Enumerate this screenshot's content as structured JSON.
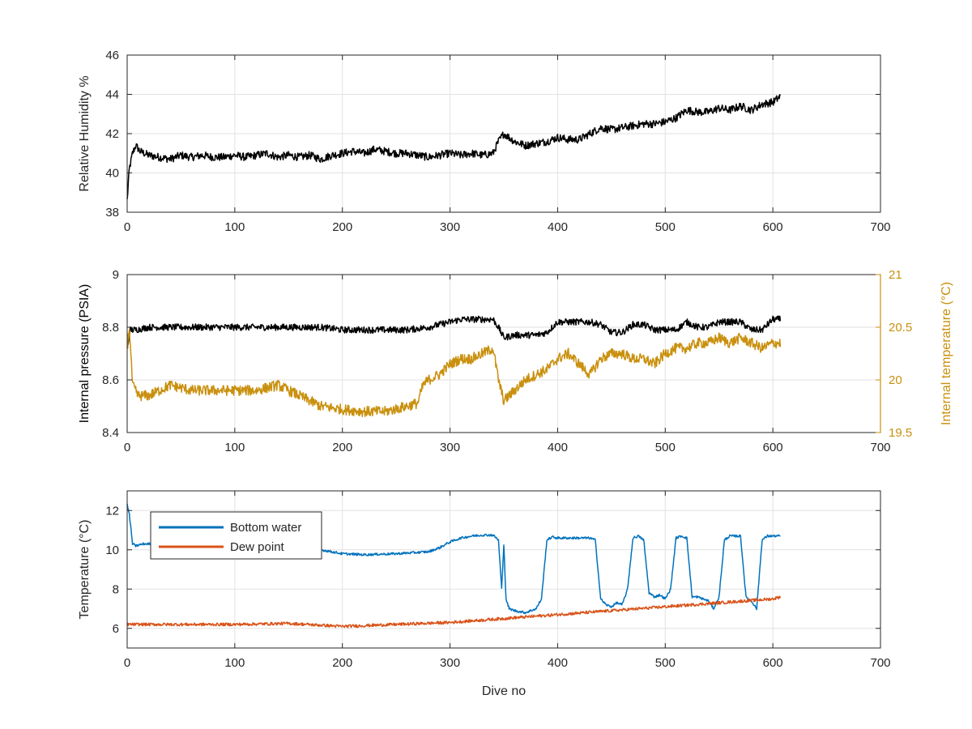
{
  "chart_data": [
    {
      "type": "line",
      "xlim": [
        0,
        700
      ],
      "ylim": [
        38,
        46
      ],
      "xticks": [
        0,
        100,
        200,
        300,
        400,
        500,
        600,
        700
      ],
      "xtick_labels": [
        "0",
        "100",
        "200",
        "300",
        "400",
        "500",
        "600",
        "700"
      ],
      "yticks": [
        38,
        40,
        42,
        44,
        46
      ],
      "ytick_labels": [
        "38",
        "40",
        "42",
        "44",
        "46"
      ],
      "grid": true,
      "xlabel": "",
      "ylabel": "Relative Humidity %",
      "series": [
        {
          "color": "#000000",
          "x": [
            0,
            2,
            5,
            8,
            12,
            20,
            30,
            40,
            50,
            60,
            70,
            80,
            90,
            100,
            110,
            120,
            130,
            140,
            150,
            160,
            170,
            180,
            190,
            200,
            210,
            220,
            230,
            240,
            250,
            260,
            270,
            280,
            290,
            300,
            310,
            320,
            330,
            340,
            345,
            350,
            360,
            370,
            380,
            390,
            400,
            410,
            420,
            430,
            440,
            450,
            460,
            470,
            480,
            490,
            500,
            510,
            520,
            530,
            540,
            550,
            560,
            570,
            580,
            590,
            600,
            607
          ],
          "y": [
            38.6,
            40.2,
            41.0,
            41.4,
            41.1,
            40.9,
            40.8,
            40.7,
            40.9,
            40.8,
            40.9,
            40.8,
            40.8,
            40.9,
            40.8,
            40.9,
            41.0,
            40.8,
            40.9,
            40.8,
            40.9,
            40.7,
            40.9,
            41.0,
            41.1,
            41.0,
            41.2,
            41.1,
            41.0,
            41.0,
            40.9,
            40.8,
            40.9,
            41.0,
            40.9,
            41.0,
            40.9,
            41.0,
            41.6,
            42.0,
            41.6,
            41.4,
            41.5,
            41.6,
            41.8,
            41.7,
            41.7,
            42.0,
            42.3,
            42.2,
            42.3,
            42.4,
            42.5,
            42.5,
            42.6,
            42.8,
            43.2,
            43.1,
            43.1,
            43.3,
            43.2,
            43.4,
            43.2,
            43.5,
            43.6,
            43.9
          ],
          "noise": 0.4
        }
      ]
    },
    {
      "type": "line",
      "xlim": [
        0,
        700
      ],
      "ylim": [
        8.4,
        9
      ],
      "ylim_right": [
        19.5,
        21
      ],
      "xticks": [
        0,
        100,
        200,
        300,
        400,
        500,
        600,
        700
      ],
      "xtick_labels": [
        "0",
        "100",
        "200",
        "300",
        "400",
        "500",
        "600",
        "700"
      ],
      "yticks": [
        8.4,
        8.6,
        8.8,
        9
      ],
      "ytick_labels": [
        "8.4",
        "8.6",
        "8.8",
        "9"
      ],
      "yticks_right": [
        19.5,
        20,
        20.5,
        21
      ],
      "ytick_labels_right": [
        "19.5",
        "20",
        "20.5",
        "21"
      ],
      "grid": true,
      "xlabel": "",
      "ylabel": "Internal pressure (PSIA)",
      "ylabel_right": "Internal temperature (°C)",
      "series": [
        {
          "axis": "left",
          "color": "#000000",
          "x": [
            0,
            3,
            8,
            20,
            40,
            60,
            80,
            100,
            120,
            140,
            160,
            180,
            200,
            220,
            240,
            260,
            280,
            290,
            300,
            310,
            320,
            330,
            340,
            345,
            350,
            360,
            370,
            380,
            390,
            400,
            410,
            420,
            430,
            440,
            450,
            460,
            470,
            480,
            490,
            500,
            510,
            520,
            530,
            540,
            550,
            560,
            570,
            580,
            590,
            600,
            607
          ],
          "y": [
            8.72,
            8.79,
            8.79,
            8.8,
            8.8,
            8.8,
            8.8,
            8.8,
            8.8,
            8.8,
            8.8,
            8.8,
            8.79,
            8.79,
            8.79,
            8.79,
            8.8,
            8.81,
            8.82,
            8.83,
            8.83,
            8.83,
            8.83,
            8.8,
            8.76,
            8.77,
            8.77,
            8.77,
            8.78,
            8.82,
            8.82,
            8.82,
            8.82,
            8.81,
            8.78,
            8.78,
            8.81,
            8.81,
            8.79,
            8.79,
            8.79,
            8.82,
            8.8,
            8.8,
            8.82,
            8.82,
            8.82,
            8.79,
            8.79,
            8.83,
            8.83
          ],
          "noise": 0.025
        },
        {
          "axis": "right",
          "color": "#c9900e",
          "x": [
            0,
            2,
            5,
            10,
            20,
            30,
            40,
            60,
            80,
            100,
            120,
            140,
            160,
            180,
            200,
            220,
            240,
            260,
            270,
            275,
            280,
            290,
            300,
            310,
            320,
            330,
            340,
            345,
            350,
            355,
            360,
            370,
            380,
            390,
            400,
            410,
            420,
            430,
            440,
            450,
            460,
            470,
            480,
            490,
            500,
            510,
            520,
            530,
            540,
            550,
            560,
            570,
            580,
            590,
            600,
            607
          ],
          "y": [
            20.3,
            20.5,
            19.95,
            19.85,
            19.85,
            19.9,
            19.95,
            19.9,
            19.9,
            19.9,
            19.9,
            19.95,
            19.85,
            19.75,
            19.72,
            19.7,
            19.7,
            19.75,
            19.78,
            19.95,
            20.0,
            20.05,
            20.15,
            20.2,
            20.2,
            20.25,
            20.3,
            20.0,
            19.8,
            19.85,
            19.9,
            20.0,
            20.05,
            20.1,
            20.2,
            20.25,
            20.15,
            20.05,
            20.2,
            20.25,
            20.25,
            20.2,
            20.2,
            20.15,
            20.25,
            20.3,
            20.3,
            20.35,
            20.35,
            20.4,
            20.35,
            20.4,
            20.35,
            20.3,
            20.35,
            20.35
          ],
          "noise": 0.1
        }
      ]
    },
    {
      "type": "line",
      "xlim": [
        0,
        700
      ],
      "ylim": [
        5,
        13
      ],
      "xticks": [
        0,
        100,
        200,
        300,
        400,
        500,
        600,
        700
      ],
      "xtick_labels": [
        "0",
        "100",
        "200",
        "300",
        "400",
        "500",
        "600",
        "700"
      ],
      "yticks": [
        6,
        8,
        10,
        12
      ],
      "ytick_labels": [
        "6",
        "8",
        "10",
        "12"
      ],
      "grid": true,
      "xlabel": "Dive no",
      "ylabel": "Temperature (°C)",
      "legend": "top-left",
      "series": [
        {
          "name": "Bottom water",
          "color": "#0072bd",
          "x": [
            0,
            2,
            5,
            8,
            15,
            30,
            50,
            80,
            100,
            150,
            180,
            200,
            220,
            250,
            280,
            290,
            300,
            310,
            320,
            330,
            340,
            345,
            348,
            350,
            352,
            355,
            360,
            370,
            380,
            385,
            390,
            395,
            400,
            410,
            420,
            430,
            435,
            440,
            445,
            450,
            455,
            460,
            465,
            470,
            475,
            480,
            485,
            490,
            495,
            500,
            505,
            510,
            515,
            520,
            525,
            530,
            535,
            540,
            545,
            550,
            555,
            560,
            565,
            570,
            575,
            580,
            585,
            590,
            595,
            600,
            607
          ],
          "y": [
            12.3,
            11.8,
            10.3,
            10.2,
            10.3,
            10.3,
            10.3,
            10.2,
            10.2,
            10.1,
            10.0,
            9.8,
            9.75,
            9.8,
            9.9,
            10.1,
            10.4,
            10.6,
            10.7,
            10.75,
            10.75,
            10.5,
            8.0,
            10.3,
            7.5,
            7.0,
            6.9,
            6.8,
            7.0,
            7.5,
            10.5,
            10.65,
            10.6,
            10.6,
            10.6,
            10.6,
            10.5,
            7.5,
            7.2,
            7.1,
            7.3,
            7.2,
            8.0,
            10.6,
            10.7,
            10.5,
            7.8,
            7.6,
            7.7,
            7.5,
            8.0,
            10.6,
            10.7,
            10.6,
            7.6,
            7.6,
            7.5,
            7.4,
            7.0,
            7.6,
            10.5,
            10.7,
            10.7,
            10.7,
            7.6,
            7.4,
            7.0,
            10.5,
            10.7,
            10.7,
            10.7
          ],
          "noise": 0.12
        },
        {
          "name": "Dew point",
          "color": "#d95319",
          "x": [
            0,
            20,
            50,
            100,
            150,
            200,
            250,
            300,
            350,
            400,
            450,
            500,
            550,
            600,
            607
          ],
          "y": [
            6.2,
            6.2,
            6.2,
            6.2,
            6.25,
            6.1,
            6.2,
            6.3,
            6.5,
            6.7,
            6.9,
            7.1,
            7.3,
            7.5,
            7.6
          ],
          "noise": 0.15
        }
      ]
    }
  ]
}
